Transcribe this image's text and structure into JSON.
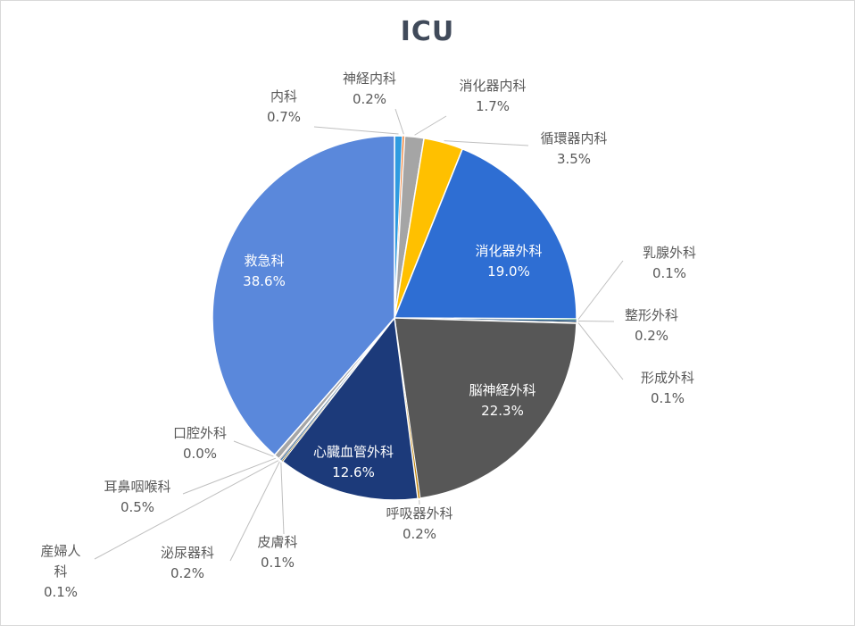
{
  "chart_data": {
    "type": "pie",
    "title": "ICU",
    "slices": [
      {
        "label": "内科",
        "value": 0.7,
        "display": "0.7%",
        "color": "#2f9be0"
      },
      {
        "label": "神経内科",
        "value": 0.2,
        "display": "0.2%",
        "color": "#ed7d31"
      },
      {
        "label": "消化器内科",
        "value": 1.7,
        "display": "1.7%",
        "color": "#a5a5a5"
      },
      {
        "label": "循環器内科",
        "value": 3.5,
        "display": "3.5%",
        "color": "#ffc000"
      },
      {
        "label": "消化器外科",
        "value": 19.0,
        "display": "19.0%",
        "color": "#2e6ed3"
      },
      {
        "label": "乳腺外科",
        "value": 0.1,
        "display": "0.1%",
        "color": "#4eb07a"
      },
      {
        "label": "整形外科",
        "value": 0.2,
        "display": "0.2%",
        "color": "#1f4e79"
      },
      {
        "label": "形成外科",
        "value": 0.1,
        "display": "0.1%",
        "color": "#7f3f00"
      },
      {
        "label": "脳神経外科",
        "value": 22.3,
        "display": "22.3%",
        "color": "#575757"
      },
      {
        "label": "呼吸器外科",
        "value": 0.2,
        "display": "0.2%",
        "color": "#c08000"
      },
      {
        "label": "心臓血管外科",
        "value": 12.6,
        "display": "12.6%",
        "color": "#1c3a7a"
      },
      {
        "label": "皮膚科",
        "value": 0.1,
        "display": "0.1%",
        "color": "#7f6000"
      },
      {
        "label": "泌尿器科",
        "value": 0.2,
        "display": "0.2%",
        "color": "#6d8fb0"
      },
      {
        "label": "産婦人科",
        "value": 0.1,
        "display": "0.1%",
        "color": "#b85a1e"
      },
      {
        "label": "耳鼻咽喉科",
        "value": 0.5,
        "display": "0.5%",
        "color": "#a6a6a6"
      },
      {
        "label": "口腔外科",
        "value": 0.0,
        "display": "0.0%",
        "color": "#c9a000"
      },
      {
        "label": "救急科",
        "value": 38.6,
        "display": "38.6%",
        "color": "#5a88db"
      }
    ],
    "legend": "none",
    "data_labels": "label and percent"
  }
}
